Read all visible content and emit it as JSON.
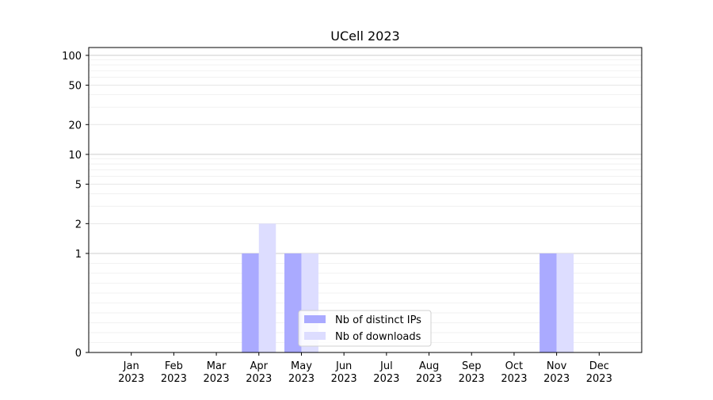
{
  "chart_data": {
    "type": "bar",
    "title": "UCell 2023",
    "xlabel": "",
    "ylabel": "",
    "categories": [
      [
        "Jan",
        "2023"
      ],
      [
        "Feb",
        "2023"
      ],
      [
        "Mar",
        "2023"
      ],
      [
        "Apr",
        "2023"
      ],
      [
        "May",
        "2023"
      ],
      [
        "Jun",
        "2023"
      ],
      [
        "Jul",
        "2023"
      ],
      [
        "Aug",
        "2023"
      ],
      [
        "Sep",
        "2023"
      ],
      [
        "Oct",
        "2023"
      ],
      [
        "Nov",
        "2023"
      ],
      [
        "Dec",
        "2023"
      ]
    ],
    "series": [
      {
        "name": "Nb of distinct IPs",
        "color": "#aaaaff",
        "values": [
          0,
          0,
          0,
          1,
          1,
          0,
          0,
          0,
          0,
          0,
          1,
          0
        ]
      },
      {
        "name": "Nb of downloads",
        "color": "#ddddff",
        "values": [
          0,
          0,
          0,
          2,
          1,
          0,
          0,
          0,
          0,
          0,
          1,
          0
        ]
      }
    ],
    "yscale": "symlog",
    "ylim": [
      0,
      120
    ],
    "yticks": [
      0,
      1,
      2,
      5,
      10,
      20,
      50,
      100
    ],
    "ytick_labels": [
      "0",
      "1",
      "2",
      "5",
      "10",
      "20",
      "50",
      "100"
    ],
    "grid": "horizontal",
    "legend_position": "bottom-center"
  }
}
